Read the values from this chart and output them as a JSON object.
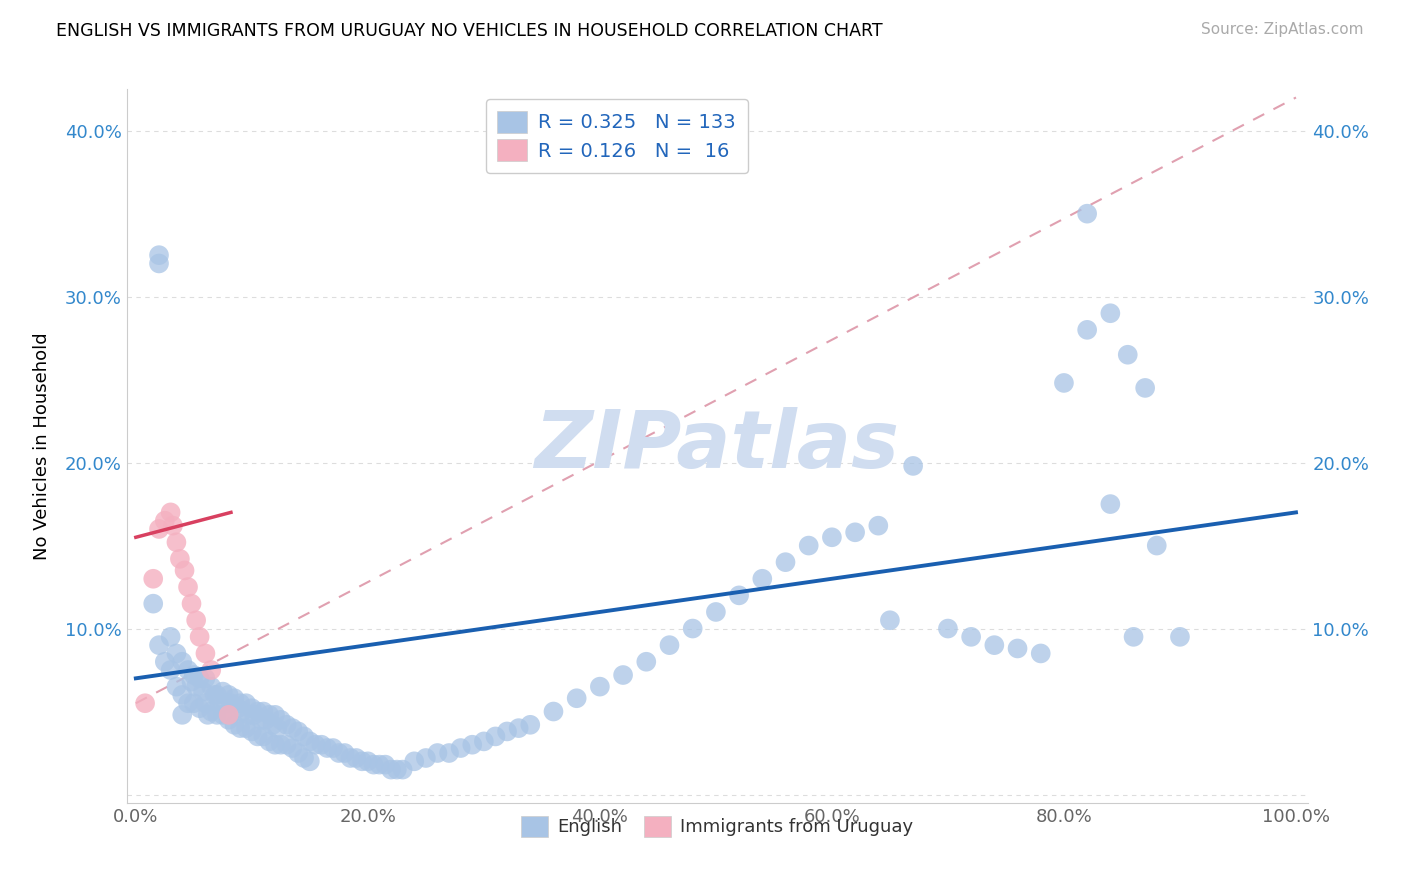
{
  "title": "ENGLISH VS IMMIGRANTS FROM URUGUAY NO VEHICLES IN HOUSEHOLD CORRELATION CHART",
  "source": "Source: ZipAtlas.com",
  "ylabel": "No Vehicles in Household",
  "xlim": [
    0.0,
    1.0
  ],
  "ylim": [
    0.0,
    0.42
  ],
  "x_ticks": [
    0.0,
    0.2,
    0.4,
    0.6,
    0.8,
    1.0
  ],
  "x_tick_labels": [
    "0.0%",
    "20.0%",
    "40.0%",
    "60.0%",
    "80.0%",
    "100.0%"
  ],
  "y_ticks": [
    0.0,
    0.1,
    0.2,
    0.3,
    0.4
  ],
  "y_tick_labels": [
    "",
    "10.0%",
    "20.0%",
    "30.0%",
    "40.0%"
  ],
  "legend_r_english": "0.325",
  "legend_n_english": "133",
  "legend_r_uruguay": "0.126",
  "legend_n_uruguay": "16",
  "english_color": "#a8c4e5",
  "uruguay_color": "#f4b0c0",
  "trend_english_color": "#1a5fb0",
  "trend_uruguay_color": "#d84060",
  "trend_dash_color": "#e0a0b0",
  "grid_color": "#dddddd",
  "watermark_color": "#d0ddf0",
  "english_label": "English",
  "uruguay_label": "Immigrants from Uruguay",
  "english_x": [
    0.02,
    0.015,
    0.02,
    0.025,
    0.03,
    0.03,
    0.035,
    0.035,
    0.04,
    0.04,
    0.04,
    0.045,
    0.045,
    0.048,
    0.05,
    0.05,
    0.052,
    0.055,
    0.055,
    0.058,
    0.06,
    0.06,
    0.062,
    0.065,
    0.065,
    0.068,
    0.07,
    0.07,
    0.072,
    0.075,
    0.075,
    0.078,
    0.08,
    0.08,
    0.082,
    0.085,
    0.085,
    0.088,
    0.09,
    0.09,
    0.092,
    0.095,
    0.095,
    0.098,
    0.1,
    0.1,
    0.102,
    0.105,
    0.105,
    0.108,
    0.11,
    0.11,
    0.112,
    0.115,
    0.115,
    0.118,
    0.12,
    0.12,
    0.122,
    0.125,
    0.125,
    0.13,
    0.13,
    0.135,
    0.135,
    0.14,
    0.14,
    0.145,
    0.145,
    0.15,
    0.15,
    0.155,
    0.16,
    0.165,
    0.17,
    0.175,
    0.18,
    0.185,
    0.19,
    0.195,
    0.2,
    0.205,
    0.21,
    0.215,
    0.22,
    0.225,
    0.23,
    0.24,
    0.25,
    0.26,
    0.27,
    0.28,
    0.29,
    0.3,
    0.31,
    0.32,
    0.33,
    0.34,
    0.36,
    0.38,
    0.4,
    0.42,
    0.44,
    0.46,
    0.48,
    0.5,
    0.52,
    0.54,
    0.56,
    0.58,
    0.6,
    0.62,
    0.64,
    0.65,
    0.67,
    0.7,
    0.72,
    0.74,
    0.76,
    0.78,
    0.8,
    0.82,
    0.84,
    0.86,
    0.88,
    0.9,
    0.82,
    0.84,
    0.855,
    0.87,
    0.02
  ],
  "english_y": [
    0.32,
    0.115,
    0.09,
    0.08,
    0.095,
    0.075,
    0.085,
    0.065,
    0.08,
    0.06,
    0.048,
    0.075,
    0.055,
    0.068,
    0.072,
    0.055,
    0.065,
    0.07,
    0.052,
    0.062,
    0.07,
    0.055,
    0.048,
    0.065,
    0.05,
    0.06,
    0.06,
    0.048,
    0.055,
    0.062,
    0.048,
    0.055,
    0.06,
    0.045,
    0.055,
    0.058,
    0.042,
    0.052,
    0.055,
    0.04,
    0.05,
    0.055,
    0.04,
    0.048,
    0.052,
    0.038,
    0.048,
    0.05,
    0.035,
    0.045,
    0.05,
    0.035,
    0.045,
    0.048,
    0.032,
    0.042,
    0.048,
    0.03,
    0.04,
    0.045,
    0.03,
    0.042,
    0.03,
    0.04,
    0.028,
    0.038,
    0.025,
    0.035,
    0.022,
    0.032,
    0.02,
    0.03,
    0.03,
    0.028,
    0.028,
    0.025,
    0.025,
    0.022,
    0.022,
    0.02,
    0.02,
    0.018,
    0.018,
    0.018,
    0.015,
    0.015,
    0.015,
    0.02,
    0.022,
    0.025,
    0.025,
    0.028,
    0.03,
    0.032,
    0.035,
    0.038,
    0.04,
    0.042,
    0.05,
    0.058,
    0.065,
    0.072,
    0.08,
    0.09,
    0.1,
    0.11,
    0.12,
    0.13,
    0.14,
    0.15,
    0.155,
    0.158,
    0.162,
    0.105,
    0.198,
    0.1,
    0.095,
    0.09,
    0.088,
    0.085,
    0.248,
    0.28,
    0.175,
    0.095,
    0.15,
    0.095,
    0.35,
    0.29,
    0.265,
    0.245,
    0.325
  ],
  "uruguay_x": [
    0.008,
    0.015,
    0.02,
    0.025,
    0.03,
    0.032,
    0.035,
    0.038,
    0.042,
    0.045,
    0.048,
    0.052,
    0.055,
    0.06,
    0.065,
    0.08
  ],
  "uruguay_y": [
    0.055,
    0.13,
    0.16,
    0.165,
    0.17,
    0.162,
    0.152,
    0.142,
    0.135,
    0.125,
    0.115,
    0.105,
    0.095,
    0.085,
    0.075,
    0.048
  ]
}
